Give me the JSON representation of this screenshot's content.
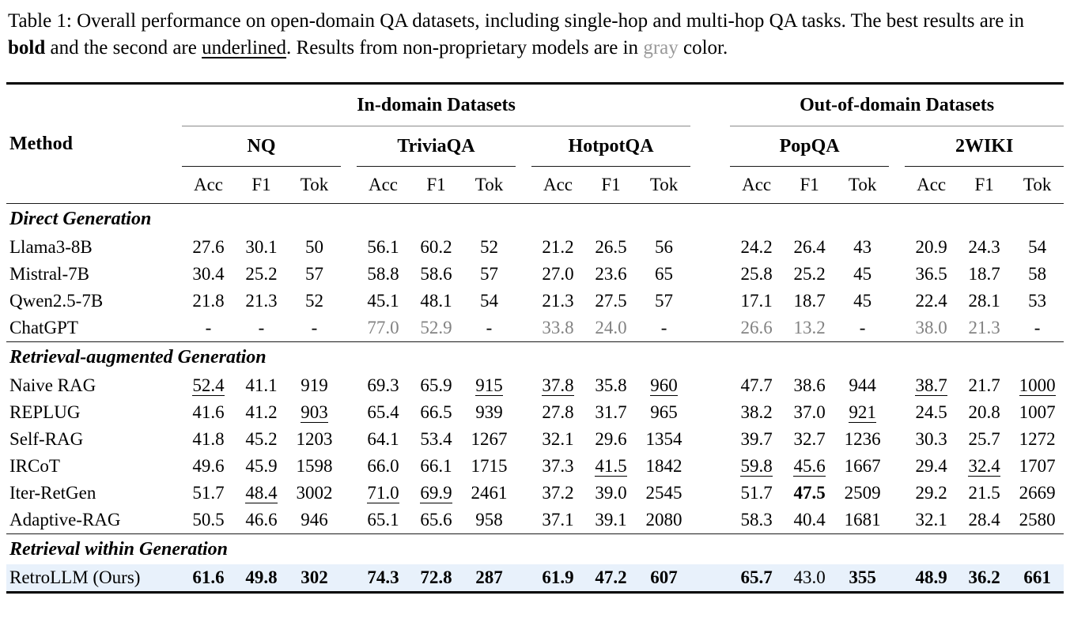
{
  "caption": {
    "part1": "Table 1: Overall performance on open-domain QA datasets, including single-hop and multi-hop QA tasks. The best results are in ",
    "bold_word": "bold",
    "part2": " and the second are ",
    "underlined_word": "underlined",
    "part3": ". Results from non-proprietary models are in ",
    "gray_word": "gray",
    "part4": " color."
  },
  "colors": {
    "highlight_row": "#e8f1fb",
    "gray_text": "#828282",
    "caption_gray": "#999999",
    "group_rule": "#8a8a8a"
  },
  "table": {
    "header": {
      "method_label": "Method",
      "groups": [
        {
          "label": "In-domain Datasets",
          "datasets": [
            "NQ",
            "TriviaQA",
            "HotpotQA"
          ]
        },
        {
          "label": "Out-of-domain Datasets",
          "datasets": [
            "PopQA",
            "2WIKI"
          ]
        }
      ],
      "metrics": [
        "Acc",
        "F1",
        "Tok"
      ]
    },
    "sections": [
      {
        "title": "Direct Generation",
        "rows": [
          {
            "method": "Llama3-8B",
            "cells": [
              "27.6",
              "30.1",
              "50",
              "56.1",
              "60.2",
              "52",
              "21.2",
              "26.5",
              "56",
              "24.2",
              "26.4",
              "43",
              "20.9",
              "24.3",
              "54"
            ]
          },
          {
            "method": "Mistral-7B",
            "cells": [
              "30.4",
              "25.2",
              "57",
              "58.8",
              "58.6",
              "57",
              "27.0",
              "23.6",
              "65",
              "25.8",
              "25.2",
              "45",
              "36.5",
              "18.7",
              "58"
            ]
          },
          {
            "method": "Qwen2.5-7B",
            "cells": [
              "21.8",
              "21.3",
              "52",
              "45.1",
              "48.1",
              "54",
              "21.3",
              "27.5",
              "57",
              "17.1",
              "18.7",
              "45",
              "22.4",
              "28.1",
              "53"
            ]
          },
          {
            "method": "ChatGPT",
            "cells": [
              "-",
              "-",
              "-",
              {
                "v": "77.0",
                "g": true
              },
              {
                "v": "52.9",
                "g": true
              },
              "-",
              {
                "v": "33.8",
                "g": true
              },
              {
                "v": "24.0",
                "g": true
              },
              "-",
              {
                "v": "26.6",
                "g": true
              },
              {
                "v": "13.2",
                "g": true
              },
              "-",
              {
                "v": "38.0",
                "g": true
              },
              {
                "v": "21.3",
                "g": true
              },
              "-"
            ]
          }
        ]
      },
      {
        "title": "Retrieval-augmented Generation",
        "rows": [
          {
            "method": "Naive RAG",
            "cells": [
              {
                "v": "52.4",
                "u": true
              },
              "41.1",
              "919",
              "69.3",
              "65.9",
              {
                "v": "915",
                "u": true
              },
              {
                "v": "37.8",
                "u": true
              },
              "35.8",
              {
                "v": "960",
                "u": true
              },
              "47.7",
              "38.6",
              "944",
              {
                "v": "38.7",
                "u": true
              },
              "21.7",
              {
                "v": "1000",
                "u": true
              }
            ]
          },
          {
            "method": "REPLUG",
            "cells": [
              "41.6",
              "41.2",
              {
                "v": "903",
                "u": true
              },
              "65.4",
              "66.5",
              "939",
              "27.8",
              "31.7",
              "965",
              "38.2",
              "37.0",
              {
                "v": "921",
                "u": true
              },
              "24.5",
              "20.8",
              "1007"
            ]
          },
          {
            "method": "Self-RAG",
            "cells": [
              "41.8",
              "45.2",
              "1203",
              "64.1",
              "53.4",
              "1267",
              "32.1",
              "29.6",
              "1354",
              "39.7",
              "32.7",
              "1236",
              "30.3",
              "25.7",
              "1272"
            ]
          },
          {
            "method": "IRCoT",
            "cells": [
              "49.6",
              "45.9",
              "1598",
              "66.0",
              "66.1",
              "1715",
              "37.3",
              {
                "v": "41.5",
                "u": true
              },
              "1842",
              {
                "v": "59.8",
                "u": true
              },
              {
                "v": "45.6",
                "u": true
              },
              "1667",
              "29.4",
              {
                "v": "32.4",
                "u": true
              },
              "1707"
            ]
          },
          {
            "method": "Iter-RetGen",
            "cells": [
              "51.7",
              {
                "v": "48.4",
                "u": true
              },
              "3002",
              {
                "v": "71.0",
                "u": true
              },
              {
                "v": "69.9",
                "u": true
              },
              "2461",
              "37.2",
              "39.0",
              "2545",
              "51.7",
              {
                "v": "47.5",
                "b": true
              },
              "2509",
              "29.2",
              "21.5",
              "2669"
            ]
          },
          {
            "method": "Adaptive-RAG",
            "cells": [
              "50.5",
              "46.6",
              "946",
              "65.1",
              "65.6",
              "958",
              "37.1",
              "39.1",
              "2080",
              "58.3",
              "40.4",
              "1681",
              "32.1",
              "28.4",
              "2580"
            ]
          }
        ]
      },
      {
        "title": "Retrieval within Generation",
        "rows": [
          {
            "method": "RetroLLM (Ours)",
            "highlight": true,
            "cells": [
              {
                "v": "61.6",
                "b": true
              },
              {
                "v": "49.8",
                "b": true
              },
              {
                "v": "302",
                "b": true
              },
              {
                "v": "74.3",
                "b": true
              },
              {
                "v": "72.8",
                "b": true
              },
              {
                "v": "287",
                "b": true
              },
              {
                "v": "61.9",
                "b": true
              },
              {
                "v": "47.2",
                "b": true
              },
              {
                "v": "607",
                "b": true
              },
              {
                "v": "65.7",
                "b": true
              },
              "43.0",
              {
                "v": "355",
                "b": true
              },
              {
                "v": "48.9",
                "b": true
              },
              {
                "v": "36.2",
                "b": true
              },
              {
                "v": "661",
                "b": true
              }
            ]
          }
        ]
      }
    ]
  }
}
